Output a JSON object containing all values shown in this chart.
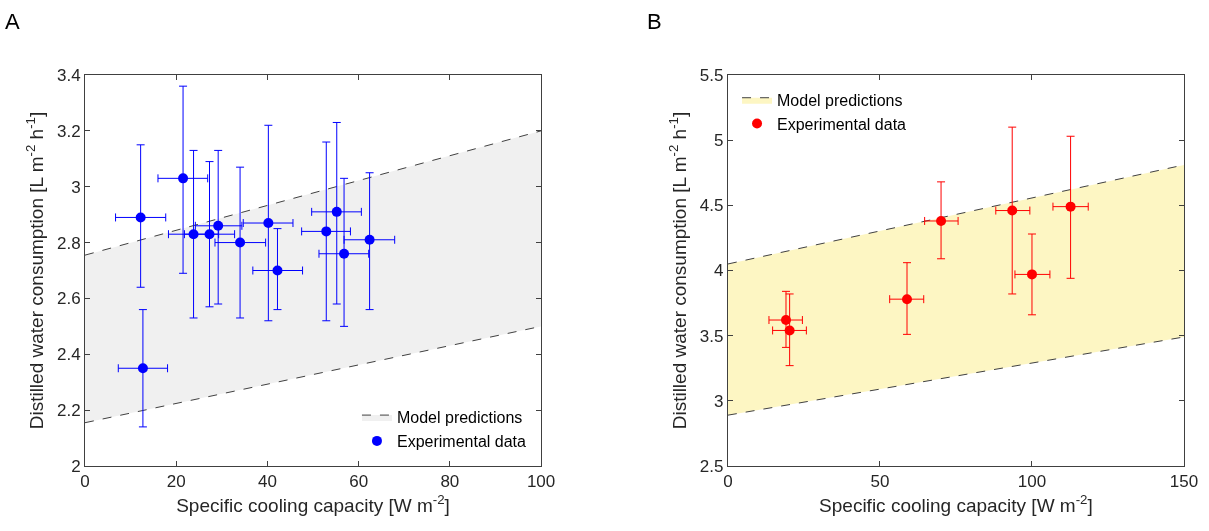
{
  "chart_data": [
    {
      "type": "scatter",
      "title": "A",
      "xlabel": "Specific cooling capacity [W m$^{-2}$]",
      "ylabel": "Distilled water consumption [L m$^{-2}$ h$^{-1}$]",
      "xlim": [
        0,
        100
      ],
      "xticks": [
        0,
        20,
        40,
        60,
        80,
        100
      ],
      "ylim": [
        2,
        3.4
      ],
      "yticks": [
        2,
        2.2,
        2.4,
        2.6,
        2.8,
        3,
        3.2,
        3.4
      ],
      "grid": false,
      "legend": "bottom right",
      "marker": "circle",
      "series": [
        {
          "type": "line",
          "color": "#404040",
          "line_style": "dashed",
          "marker": "none",
          "x": [
            0,
            100
          ],
          "values": [
            2.155,
            2.5
          ]
        },
        {
          "name": "Model predictions",
          "type": "area",
          "color": "#f0f0f0",
          "line_style": "dashed",
          "marker": "none",
          "x": [
            0,
            100
          ],
          "values": [
            2.755,
            3.2
          ]
        },
        {
          "name": "Experimental data",
          "color": "#0000ff",
          "x": [
            12.2,
            12.7,
            21.5,
            23.8,
            27.3,
            29.2,
            34.0,
            40.2,
            42.2,
            52.9,
            55.2,
            56.8,
            62.4
          ],
          "values": [
            2.89,
            2.35,
            3.03,
            2.83,
            2.83,
            2.86,
            2.8,
            2.87,
            2.7,
            2.84,
            2.91,
            2.76,
            2.81
          ],
          "errors": [
            [
              2.64,
              3.15
            ],
            [
              2.14,
              2.56
            ],
            [
              2.69,
              3.36
            ],
            [
              2.53,
              3.13
            ],
            [
              2.57,
              3.09
            ],
            [
              2.58,
              3.13
            ],
            [
              2.53,
              3.07
            ],
            [
              2.52,
              3.22
            ],
            [
              2.56,
              2.85
            ],
            [
              2.52,
              3.16
            ],
            [
              2.58,
              3.23
            ],
            [
              2.5,
              3.03
            ],
            [
              2.56,
              3.05
            ]
          ],
          "xerrors": [
            [
              6.7,
              17.7
            ],
            [
              7.3,
              18.1
            ],
            [
              16.0,
              26.9
            ],
            [
              18.3,
              29.3
            ],
            [
              21.8,
              32.8
            ],
            [
              24.2,
              34.4
            ],
            [
              28.5,
              39.6
            ],
            [
              34.7,
              45.6
            ],
            [
              36.8,
              47.7
            ],
            [
              47.5,
              58.2
            ],
            [
              49.7,
              60.6
            ],
            [
              51.3,
              62.2
            ],
            [
              56.8,
              67.9
            ]
          ]
        }
      ]
    },
    {
      "type": "scatter",
      "title": "B",
      "xlabel": "Specific cooling capacity [W m$^{-2}$]",
      "ylabel": "Distilled water consumption [L m$^{-2}$ h$^{-1}$]",
      "xlim": [
        0,
        150
      ],
      "xticks": [
        0,
        50,
        100,
        150
      ],
      "ylim": [
        2.5,
        5.5
      ],
      "yticks": [
        2.5,
        3,
        3.5,
        4,
        4.5,
        5,
        5.5
      ],
      "grid": false,
      "legend": "top left",
      "marker": "circle",
      "series": [
        {
          "type": "line",
          "color": "#404040",
          "line_style": "dashed",
          "marker": "none",
          "x": [
            0,
            150
          ],
          "values": [
            2.89,
            3.49
          ]
        },
        {
          "name": "Model predictions",
          "type": "area",
          "color": "#fdf6c3",
          "line_style": "dashed",
          "marker": "none",
          "x": [
            0,
            150
          ],
          "values": [
            4.05,
            4.81
          ]
        },
        {
          "name": "Experimental data",
          "color": "#ff0000",
          "x": [
            19.1,
            20.3,
            58.9,
            70.1,
            93.5,
            100.0,
            112.7
          ],
          "values": [
            3.62,
            3.54,
            3.78,
            4.38,
            4.46,
            3.97,
            4.49
          ],
          "errors": [
            [
              3.41,
              3.84
            ],
            [
              3.27,
              3.82
            ],
            [
              3.51,
              4.06
            ],
            [
              4.09,
              4.68
            ],
            [
              3.82,
              5.1
            ],
            [
              3.66,
              4.28
            ],
            [
              3.94,
              5.03
            ]
          ],
          "xerrors": [
            [
              13.5,
              24.5
            ],
            [
              14.7,
              25.8
            ],
            [
              53.2,
              64.4
            ],
            [
              64.7,
              75.7
            ],
            [
              88.1,
              99.3
            ],
            [
              94.4,
              105.9
            ],
            [
              106.9,
              118.5
            ]
          ]
        }
      ]
    }
  ]
}
